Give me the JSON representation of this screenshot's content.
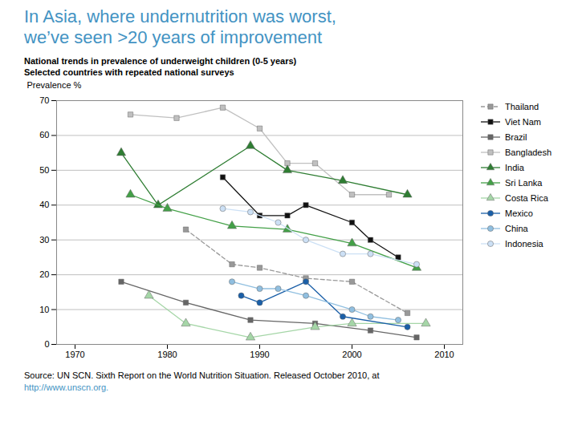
{
  "chart_data": {
    "type": "line",
    "title": [
      "In Asia, where undernutrition was worst,",
      "we’ve seen >20 years of improvement"
    ],
    "title_color": "#4393c3",
    "subtitle": [
      "National trends in prevalence of underweight children (0-5 years)",
      "Selected countries with repeated national surveys"
    ],
    "caption": [
      "Source: UN SCN. Sixth Report on the World Nutrition Situation. Released October 2010, at",
      "http://www.unscn.org."
    ],
    "caption_colors": [
      "#000000",
      "#4393c3"
    ],
    "ylabel": "Prevalence %",
    "xlim": [
      1968,
      2012
    ],
    "xticks": [
      1970,
      1980,
      1990,
      2000,
      2010
    ],
    "ylim": [
      0,
      70
    ],
    "yticks": [
      0,
      10,
      20,
      30,
      40,
      50,
      60,
      70
    ],
    "grid": true,
    "legend": "right",
    "series": [
      {
        "name": "Thailand",
        "color": "#999999",
        "marker": "square",
        "line_style": "dashed",
        "x": [
          1982,
          1987,
          1990,
          1995,
          2000,
          2006
        ],
        "values": [
          33,
          23,
          22,
          19,
          18,
          9
        ]
      },
      {
        "name": "Viet Nam",
        "color": "#111111",
        "marker": "square",
        "line_style": "solid",
        "x": [
          1986,
          1990,
          1993,
          1995,
          2000,
          2002,
          2005
        ],
        "values": [
          48,
          37,
          37,
          40,
          35,
          30,
          25
        ]
      },
      {
        "name": "Brazil",
        "color": "#666666",
        "marker": "square",
        "line_style": "solid",
        "x": [
          1975,
          1982,
          1989,
          1996,
          2002,
          2007
        ],
        "values": [
          18,
          12,
          7,
          6,
          4,
          2
        ]
      },
      {
        "name": "Bangladesh",
        "color": "#c0c0c0",
        "marker": "square",
        "line_style": "solid",
        "x": [
          1976,
          1981,
          1986,
          1990,
          1993,
          1996,
          2000,
          2004
        ],
        "values": [
          66,
          65,
          68,
          62,
          52,
          52,
          43,
          43
        ]
      },
      {
        "name": "India",
        "color": "#2e7d32",
        "marker": "triangle",
        "line_style": "solid",
        "x": [
          1975,
          1979,
          1989,
          1993,
          1999,
          2006
        ],
        "values": [
          55,
          40,
          57,
          50,
          47,
          43
        ]
      },
      {
        "name": "Sri Lanka",
        "color": "#43a047",
        "marker": "triangle",
        "line_style": "solid",
        "x": [
          1976,
          1980,
          1987,
          1993,
          2000,
          2007
        ],
        "values": [
          43,
          39,
          34,
          33,
          29,
          22
        ]
      },
      {
        "name": "Costa Rica",
        "color": "#a5d6a7",
        "marker": "triangle",
        "line_style": "solid",
        "x": [
          1978,
          1982,
          1989,
          1996,
          2000,
          2008
        ],
        "values": [
          14,
          6,
          2,
          5,
          6,
          6
        ]
      },
      {
        "name": "Mexico",
        "color": "#1a5fa8",
        "marker": "circle",
        "line_style": "solid",
        "x": [
          1988,
          1990,
          1995,
          1999,
          2006
        ],
        "values": [
          14,
          12,
          18,
          8,
          5
        ]
      },
      {
        "name": "China",
        "color": "#90bfe0",
        "marker": "circle",
        "line_style": "solid",
        "x": [
          1987,
          1990,
          1992,
          1995,
          2000,
          2002,
          2005
        ],
        "values": [
          18,
          16,
          16,
          14,
          10,
          8,
          7
        ]
      },
      {
        "name": "Indonesia",
        "color": "#cce0f5",
        "marker": "circle",
        "line_style": "solid",
        "x": [
          1986,
          1989,
          1992,
          1995,
          1999,
          2002,
          2007
        ],
        "values": [
          39,
          38,
          35,
          30,
          26,
          26,
          23
        ]
      }
    ]
  }
}
